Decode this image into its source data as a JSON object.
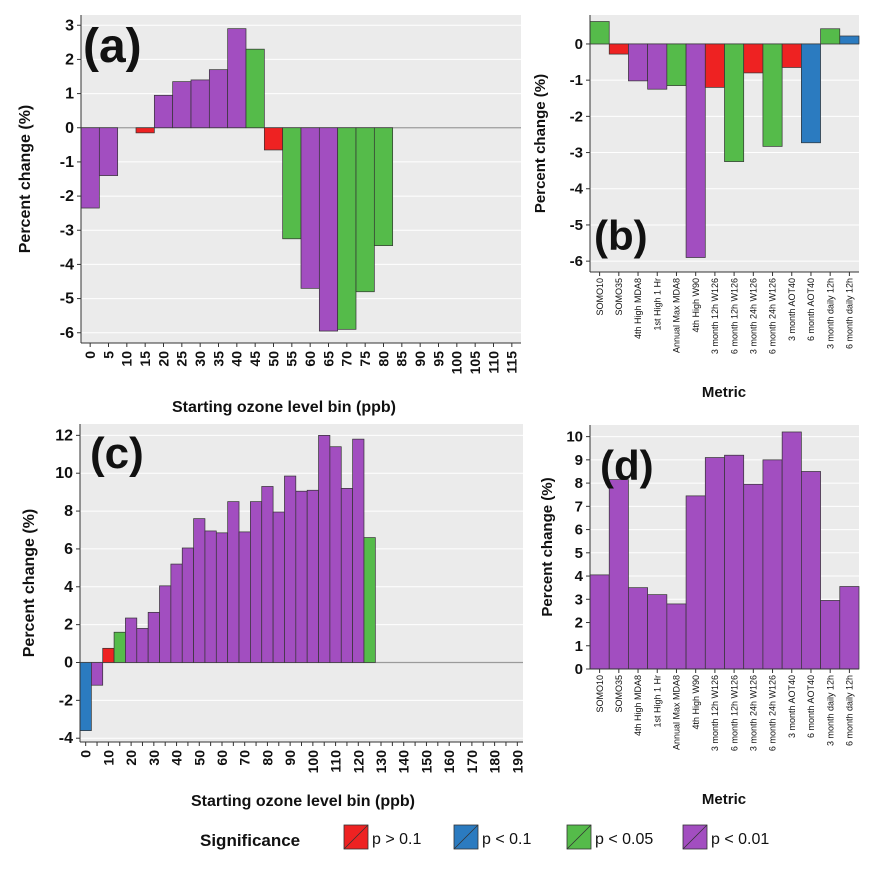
{
  "legend": {
    "title": "Significance",
    "items": [
      {
        "label": "p > 0.1",
        "color": "#ee2222"
      },
      {
        "label": "p < 0.1",
        "color": "#2b7bc0"
      },
      {
        "label": "p < 0.05",
        "color": "#55bb4a"
      },
      {
        "label": "p < 0.01",
        "color": "#a24ec0"
      }
    ]
  },
  "chart_data": [
    {
      "panel": "(a)",
      "type": "bar",
      "xlabel": "Starting ozone level bin (ppb)",
      "ylabel": "Percent change (%)",
      "ylim": [
        -6.3,
        3.3
      ],
      "yticks": [
        3,
        2,
        1,
        0,
        -1,
        -2,
        -3,
        -4,
        -5,
        -6
      ],
      "categories": [
        "0",
        "5",
        "10",
        "15",
        "20",
        "25",
        "30",
        "35",
        "40",
        "45",
        "50",
        "55",
        "60",
        "65",
        "70",
        "75",
        "80",
        "85",
        "90",
        "95",
        "100",
        "105",
        "110",
        "115"
      ],
      "values": [
        -2.35,
        -1.4,
        0,
        -0.15,
        0.95,
        1.35,
        1.4,
        1.7,
        2.9,
        2.3,
        -0.65,
        -3.25,
        -4.7,
        -5.95,
        -5.9,
        -4.8,
        -3.45,
        0,
        0,
        0,
        0,
        0,
        0,
        0
      ],
      "significance": [
        "p < 0.01",
        "p < 0.01",
        null,
        "p > 0.1",
        "p < 0.01",
        "p < 0.01",
        "p < 0.01",
        "p < 0.01",
        "p < 0.01",
        "p < 0.05",
        "p > 0.1",
        "p < 0.05",
        "p < 0.01",
        "p < 0.01",
        "p < 0.05",
        "p < 0.05",
        "p < 0.05",
        null,
        null,
        null,
        null,
        null,
        null,
        null
      ]
    },
    {
      "panel": "(b)",
      "type": "bar",
      "xlabel": "Metric",
      "ylabel": "Percent change (%)",
      "ylim": [
        -6.3,
        0.8
      ],
      "yticks": [
        0,
        -1,
        -2,
        -3,
        -4,
        -5,
        -6
      ],
      "categories": [
        "SOMO10",
        "SOMO35",
        "4th High MDA8",
        "1st High 1 Hr",
        "Annual Max MDA8",
        "4th High W90",
        "3 month 12h W126",
        "6 month 12h W126",
        "3 month 24h W126",
        "6 month 24h W126",
        "3 month AOT40",
        "6 month AOT40",
        "3 month daily 12h",
        "6 month daily 12h"
      ],
      "values": [
        0.62,
        -0.28,
        -1.02,
        -1.25,
        -1.15,
        -5.9,
        -1.2,
        -3.25,
        -0.8,
        -2.83,
        -0.65,
        -2.73,
        0.42,
        0.22
      ],
      "significance": [
        "p < 0.05",
        "p > 0.1",
        "p < 0.01",
        "p < 0.01",
        "p < 0.05",
        "p < 0.01",
        "p > 0.1",
        "p < 0.05",
        "p > 0.1",
        "p < 0.05",
        "p > 0.1",
        "p < 0.1",
        "p < 0.05",
        "p < 0.1"
      ]
    },
    {
      "panel": "(c)",
      "type": "bar",
      "xlabel": "Starting ozone level bin (ppb)",
      "ylabel": "Percent change (%)",
      "ylim": [
        -4.2,
        12.6
      ],
      "yticks": [
        12,
        10,
        8,
        6,
        4,
        2,
        0,
        -2,
        -4
      ],
      "categories": [
        "0",
        "5",
        "10",
        "15",
        "20",
        "25",
        "30",
        "35",
        "40",
        "45",
        "50",
        "55",
        "60",
        "65",
        "70",
        "75",
        "80",
        "85",
        "90",
        "95",
        "100",
        "105",
        "110",
        "115",
        "120",
        "125",
        "130",
        "135",
        "140",
        "145",
        "150",
        "155",
        "160",
        "165",
        "170",
        "175",
        "180",
        "185",
        "190"
      ],
      "tick_labels": [
        "0",
        "10",
        "20",
        "30",
        "40",
        "50",
        "60",
        "70",
        "80",
        "90",
        "100",
        "110",
        "120",
        "130",
        "140",
        "150",
        "160",
        "170",
        "180",
        "190"
      ],
      "values": [
        -3.6,
        -1.2,
        0.75,
        1.6,
        2.35,
        1.8,
        2.65,
        4.05,
        5.2,
        6.05,
        7.6,
        6.95,
        6.85,
        8.5,
        6.9,
        8.5,
        9.3,
        7.95,
        9.85,
        9.05,
        9.1,
        12.0,
        11.4,
        9.2,
        11.8,
        6.6,
        0,
        0,
        0,
        0,
        0,
        0,
        0,
        0,
        0,
        0,
        0,
        0,
        0
      ],
      "significance": [
        "p < 0.1",
        "p < 0.01",
        "p > 0.1",
        "p < 0.05",
        "p < 0.01",
        "p < 0.01",
        "p < 0.01",
        "p < 0.01",
        "p < 0.01",
        "p < 0.01",
        "p < 0.01",
        "p < 0.01",
        "p < 0.01",
        "p < 0.01",
        "p < 0.01",
        "p < 0.01",
        "p < 0.01",
        "p < 0.01",
        "p < 0.01",
        "p < 0.01",
        "p < 0.01",
        "p < 0.01",
        "p < 0.01",
        "p < 0.01",
        "p < 0.01",
        "p < 0.05",
        null,
        null,
        null,
        null,
        null,
        null,
        null,
        null,
        null,
        null,
        null,
        null,
        null
      ]
    },
    {
      "panel": "(d)",
      "type": "bar",
      "xlabel": "Metric",
      "ylabel": "Percent change (%)",
      "ylim": [
        0,
        10.5
      ],
      "yticks": [
        10,
        9,
        8,
        7,
        6,
        5,
        4,
        3,
        2,
        1,
        0
      ],
      "categories": [
        "SOMO10",
        "SOMO35",
        "4th High MDA8",
        "1st High 1 Hr",
        "Annual Max MDA8",
        "4th High W90",
        "3 month 12h W126",
        "6 month 12h W126",
        "3 month 24h W126",
        "6 month 24h W126",
        "3 month AOT40",
        "6 month AOT40",
        "3 month daily 12h",
        "6 month daily 12h"
      ],
      "values": [
        4.05,
        8.15,
        3.5,
        3.2,
        2.8,
        7.45,
        9.1,
        9.2,
        7.95,
        9.0,
        10.2,
        8.5,
        2.95,
        3.55
      ],
      "significance": [
        "p < 0.01",
        "p < 0.01",
        "p < 0.01",
        "p < 0.01",
        "p < 0.01",
        "p < 0.01",
        "p < 0.01",
        "p < 0.01",
        "p < 0.01",
        "p < 0.01",
        "p < 0.01",
        "p < 0.01",
        "p < 0.01",
        "p < 0.01"
      ]
    }
  ]
}
